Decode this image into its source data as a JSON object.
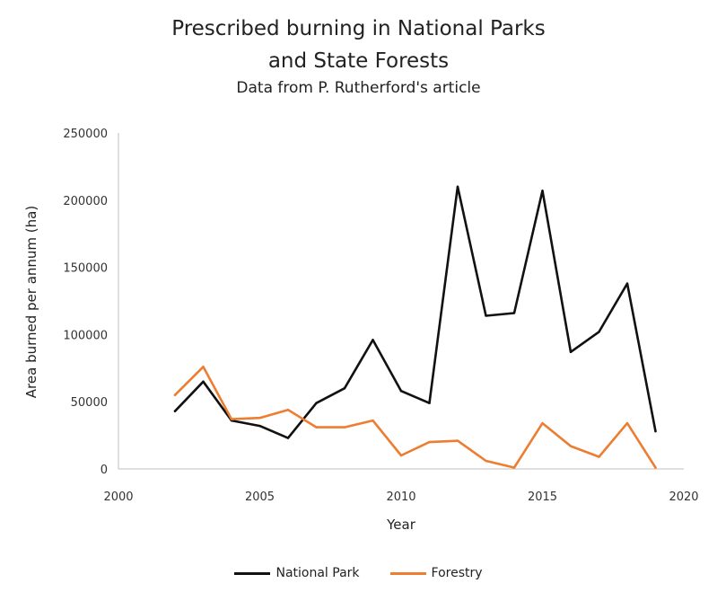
{
  "chart_data": {
    "type": "line",
    "title_line1": "Prescribed burning in National Parks",
    "title_line2": "and State Forests",
    "subtitle": "Data from P. Rutherford's article",
    "xlabel": "Year",
    "ylabel": "Area burned per annum (ha)",
    "xlim": [
      2000,
      2020
    ],
    "ylim": [
      0,
      250000
    ],
    "x_ticks": [
      2000,
      2005,
      2010,
      2015,
      2020
    ],
    "y_ticks": [
      0,
      50000,
      100000,
      150000,
      200000,
      250000
    ],
    "grid": false,
    "legend_position": "bottom",
    "x": [
      2002,
      2003,
      2004,
      2005,
      2006,
      2007,
      2008,
      2009,
      2010,
      2011,
      2012,
      2013,
      2014,
      2015,
      2016,
      2017,
      2018,
      2019
    ],
    "series": [
      {
        "name": "National Park",
        "color": "#111111",
        "values": [
          43000,
          65000,
          36000,
          32000,
          23000,
          49000,
          60000,
          96000,
          58000,
          49000,
          210000,
          114000,
          116000,
          207000,
          87000,
          102000,
          138000,
          28000
        ]
      },
      {
        "name": "Forestry",
        "color": "#ED7D31",
        "values": [
          55000,
          76000,
          37000,
          38000,
          44000,
          31000,
          31000,
          36000,
          10000,
          20000,
          21000,
          6000,
          1000,
          34000,
          17000,
          9000,
          34000,
          1000
        ]
      }
    ]
  }
}
